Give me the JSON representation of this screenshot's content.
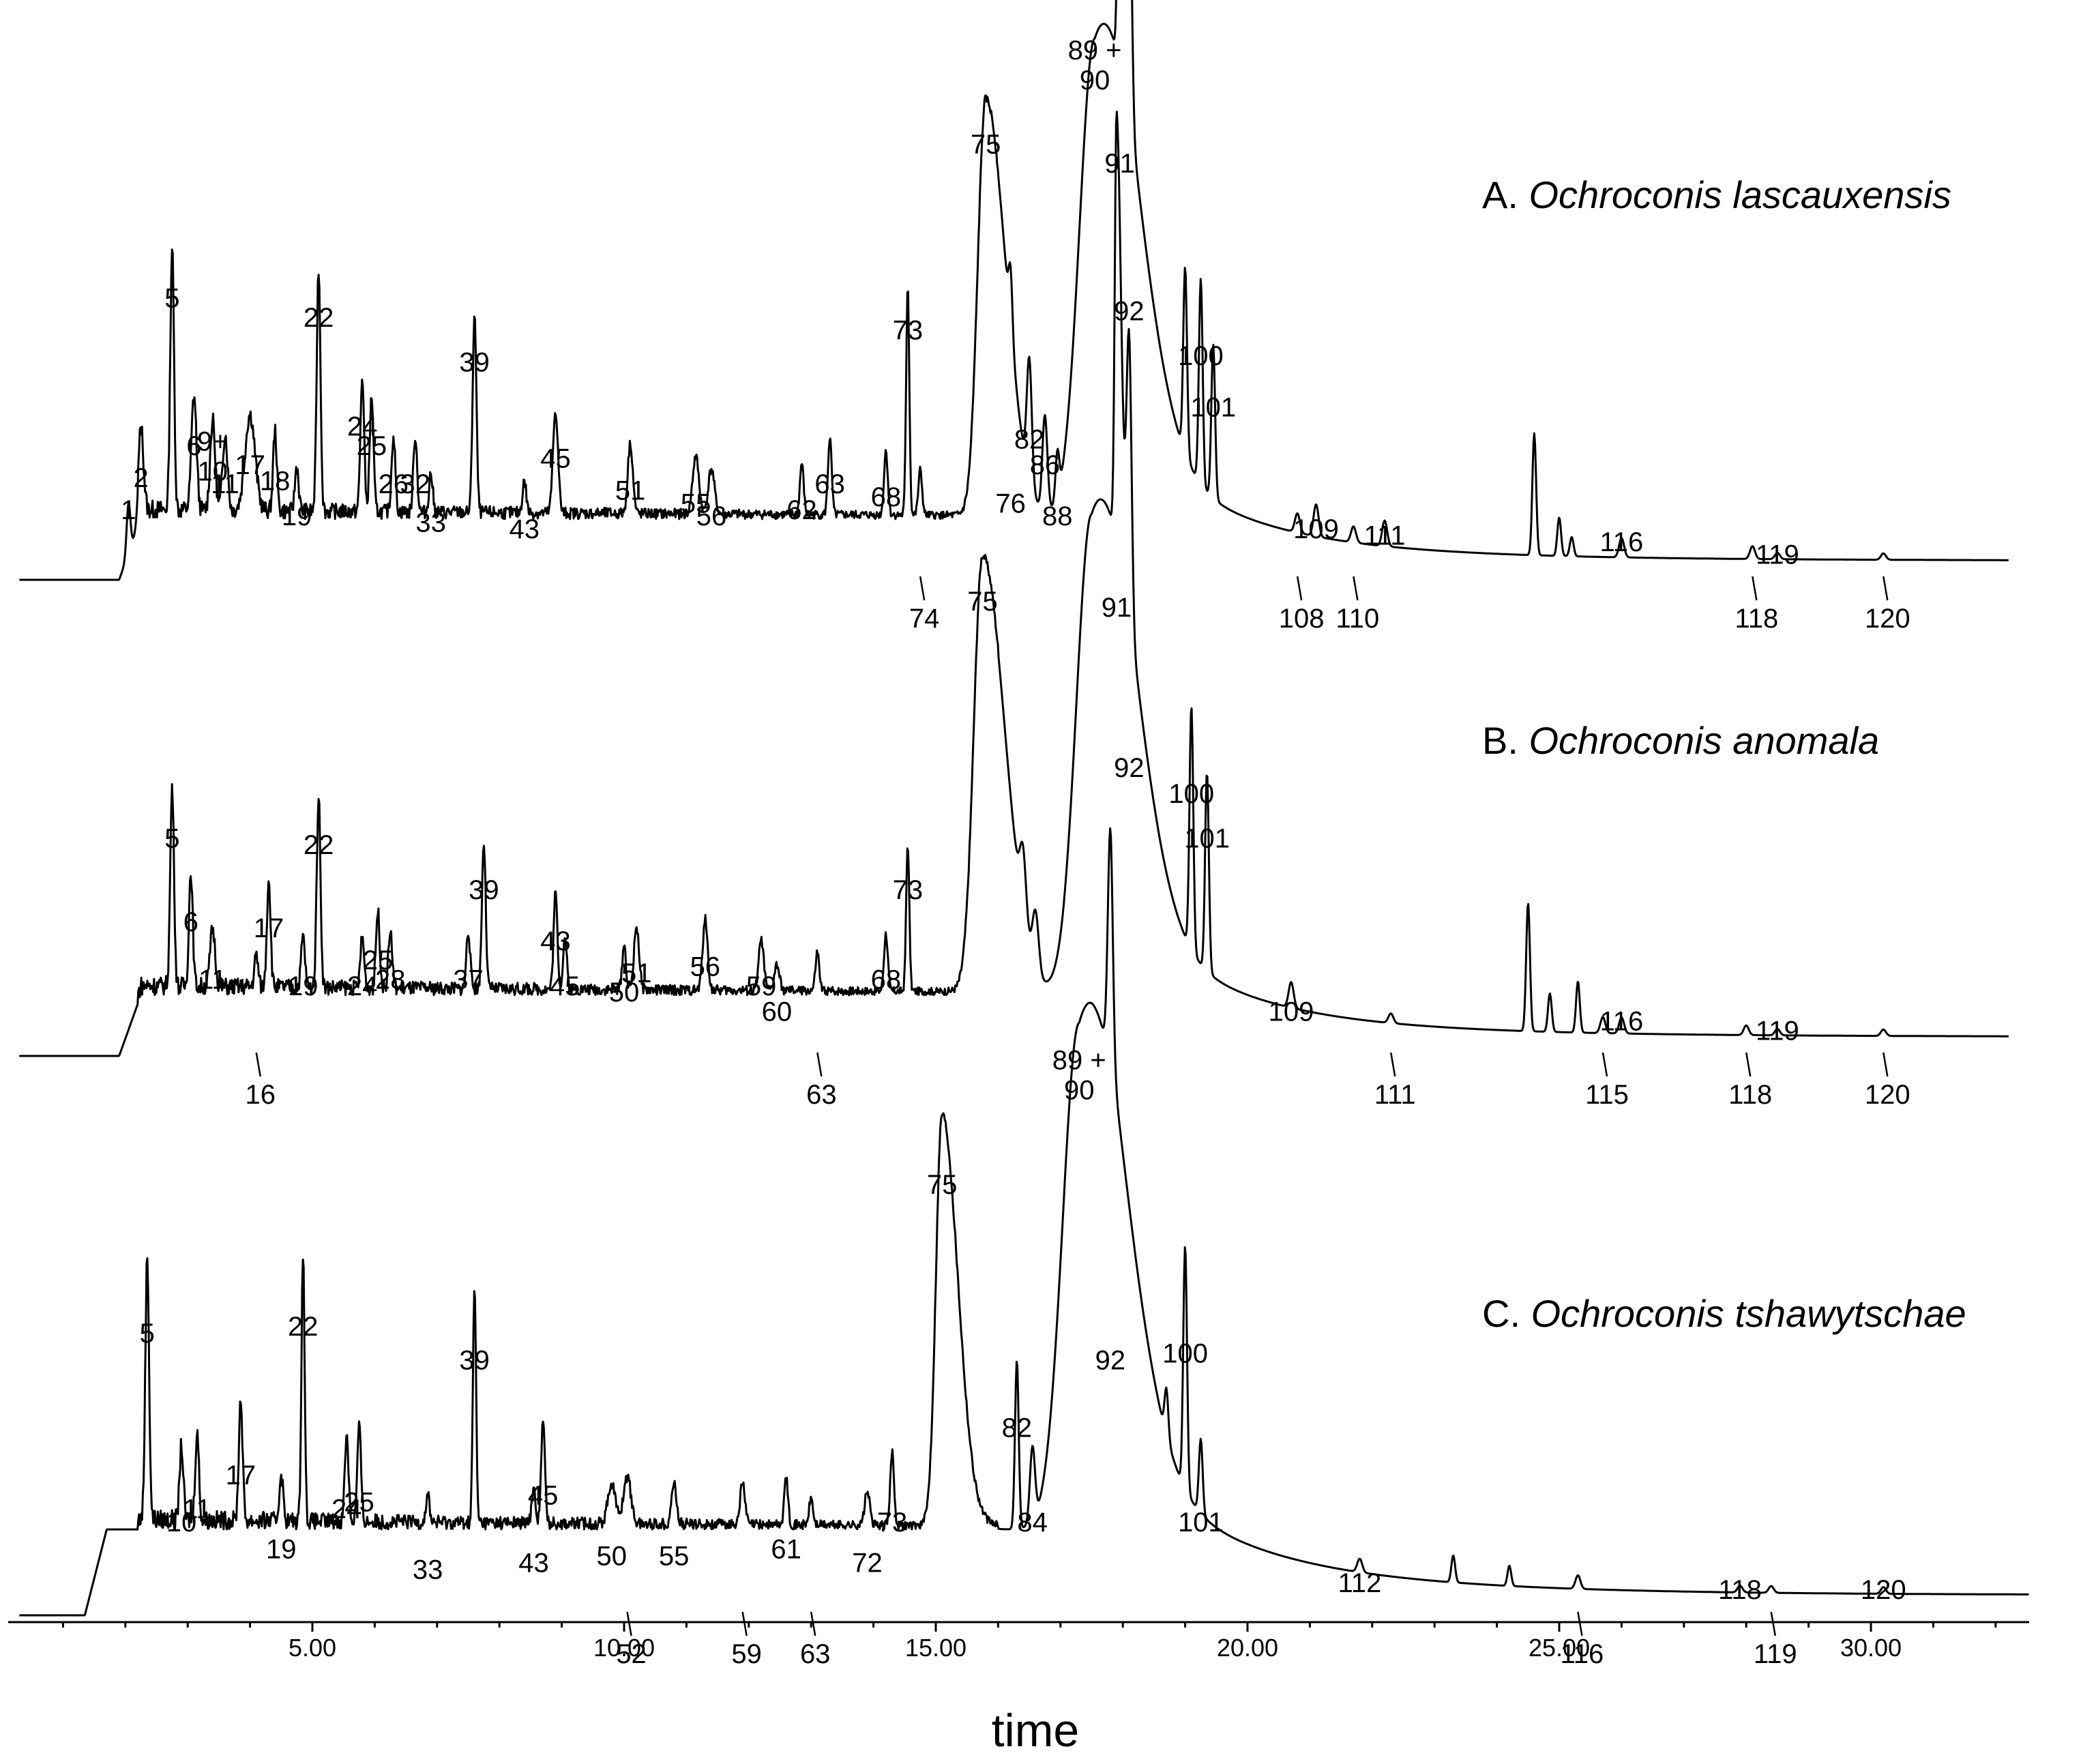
{
  "chart_data": {
    "type": "line",
    "x_unit": "min",
    "xlabel": "time",
    "xlim": [
      0.3,
      33.0
    ],
    "x_ticks": [
      "5.00",
      "10.00",
      "15.00",
      "20.00",
      "25.00",
      "30.00"
    ],
    "x_tick_values": [
      5,
      10,
      15,
      20,
      25,
      30
    ],
    "panels": [
      {
        "label": "A.",
        "species": "Ochroconis lascauxensis",
        "start_time": 1.9,
        "baseline": 4,
        "peaks": [
          {
            "t": 2.05,
            "h": 16,
            "label": "1",
            "w": 0.03
          },
          {
            "t": 2.25,
            "h": 26,
            "label": "2",
            "w": 0.04
          },
          {
            "t": 2.75,
            "h": 82,
            "label": "5",
            "w": 0.03
          },
          {
            "t": 3.1,
            "h": 36,
            "label": "6",
            "w": 0.04
          },
          {
            "t": 3.4,
            "h": 28,
            "label": "9+\n10",
            "w": 0.04
          },
          {
            "t": 3.6,
            "h": 24,
            "label": "11",
            "w": 0.04
          },
          {
            "t": 4.0,
            "h": 30,
            "label": "17",
            "w": 0.08
          },
          {
            "t": 4.4,
            "h": 25,
            "label": "18",
            "w": 0.03
          },
          {
            "t": 4.75,
            "h": 14,
            "label": "19",
            "w": 0.03
          },
          {
            "t": 5.1,
            "h": 76,
            "label": "22",
            "w": 0.03
          },
          {
            "t": 5.8,
            "h": 42,
            "label": "24",
            "w": 0.03
          },
          {
            "t": 5.95,
            "h": 36,
            "label": "25",
            "w": 0.03
          },
          {
            "t": 6.3,
            "h": 24,
            "label": "26",
            "w": 0.03
          },
          {
            "t": 6.65,
            "h": 24,
            "label": "32",
            "w": 0.03
          },
          {
            "t": 6.9,
            "h": 12,
            "label": "33",
            "w": 0.03
          },
          {
            "t": 7.6,
            "h": 62,
            "label": "39",
            "w": 0.03
          },
          {
            "t": 8.4,
            "h": 10,
            "label": "43",
            "w": 0.03
          },
          {
            "t": 8.9,
            "h": 32,
            "label": "45",
            "w": 0.04
          },
          {
            "t": 10.1,
            "h": 22,
            "label": "51",
            "w": 0.04
          },
          {
            "t": 11.15,
            "h": 18,
            "label": "55",
            "w": 0.05
          },
          {
            "t": 11.4,
            "h": 14,
            "label": "56",
            "w": 0.05
          },
          {
            "t": 12.85,
            "h": 16,
            "label": "62",
            "w": 0.03
          },
          {
            "t": 13.3,
            "h": 24,
            "label": "63",
            "w": 0.03
          },
          {
            "t": 14.2,
            "h": 20,
            "label": "68",
            "w": 0.03
          },
          {
            "t": 14.55,
            "h": 72,
            "label": "73",
            "w": 0.025
          },
          {
            "t": 14.75,
            "h": 14,
            "label": "74",
            "w": 0.03
          },
          {
            "t": 15.8,
            "h": 130,
            "label": "75",
            "w": 0.18
          },
          {
            "t": 16.2,
            "h": 18,
            "label": "76",
            "w": 0.03
          },
          {
            "t": 16.5,
            "h": 38,
            "label": "82",
            "w": 0.04
          },
          {
            "t": 16.75,
            "h": 30,
            "label": "86",
            "w": 0.04
          },
          {
            "t": 16.95,
            "h": 14,
            "label": "88",
            "w": 0.03
          },
          {
            "t": 17.55,
            "h": 150,
            "label": "89 +\n90",
            "w": 0.35
          },
          {
            "t": 17.95,
            "h": 124,
            "label": "91",
            "w": 0.04
          },
          {
            "t": 18.1,
            "h": 78,
            "label": "92",
            "w": 0.04
          },
          {
            "t": 19.0,
            "h": 58,
            "label": "",
            "w": 0.03
          },
          {
            "t": 19.25,
            "h": 64,
            "label": "100",
            "w": 0.03
          },
          {
            "t": 19.45,
            "h": 48,
            "label": "101",
            "w": 0.03
          },
          {
            "t": 20.8,
            "h": 6,
            "label": "108",
            "w": 0.04
          },
          {
            "t": 21.1,
            "h": 10,
            "label": "109",
            "w": 0.04
          },
          {
            "t": 21.7,
            "h": 5,
            "label": "110",
            "w": 0.04
          },
          {
            "t": 22.2,
            "h": 8,
            "label": "111",
            "w": 0.04
          },
          {
            "t": 24.6,
            "h": 38,
            "label": "",
            "w": 0.03
          },
          {
            "t": 25.0,
            "h": 12,
            "label": "",
            "w": 0.03
          },
          {
            "t": 25.2,
            "h": 6,
            "label": "",
            "w": 0.03
          },
          {
            "t": 26.0,
            "h": 6,
            "label": "116",
            "w": 0.04
          },
          {
            "t": 28.1,
            "h": 4,
            "label": "118",
            "w": 0.04
          },
          {
            "t": 28.5,
            "h": 2,
            "label": "119",
            "w": 0.04
          },
          {
            "t": 30.2,
            "h": 2,
            "label": "120",
            "w": 0.04
          }
        ]
      },
      {
        "label": "B.",
        "species": "Ochroconis anomala",
        "start_time": 1.9,
        "baseline": 4,
        "peaks": [
          {
            "t": 2.75,
            "h": 62,
            "label": "5",
            "w": 0.03
          },
          {
            "t": 3.05,
            "h": 36,
            "label": "6",
            "w": 0.03
          },
          {
            "t": 3.4,
            "h": 18,
            "label": "11",
            "w": 0.04
          },
          {
            "t": 4.1,
            "h": 10,
            "label": "16",
            "w": 0.03
          },
          {
            "t": 4.3,
            "h": 34,
            "label": "17",
            "w": 0.03
          },
          {
            "t": 4.85,
            "h": 16,
            "label": "19",
            "w": 0.03
          },
          {
            "t": 5.1,
            "h": 60,
            "label": "22",
            "w": 0.03
          },
          {
            "t": 5.8,
            "h": 16,
            "label": "24",
            "w": 0.03
          },
          {
            "t": 6.05,
            "h": 24,
            "label": "25",
            "w": 0.03
          },
          {
            "t": 6.25,
            "h": 18,
            "label": "28",
            "w": 0.03
          },
          {
            "t": 7.5,
            "h": 18,
            "label": "37",
            "w": 0.03
          },
          {
            "t": 7.75,
            "h": 46,
            "label": "39",
            "w": 0.03
          },
          {
            "t": 8.9,
            "h": 30,
            "label": "43",
            "w": 0.03
          },
          {
            "t": 9.05,
            "h": 16,
            "label": "45",
            "w": 0.03
          },
          {
            "t": 10.0,
            "h": 14,
            "label": "50",
            "w": 0.03
          },
          {
            "t": 10.2,
            "h": 20,
            "label": "51",
            "w": 0.04
          },
          {
            "t": 11.3,
            "h": 22,
            "label": "56",
            "w": 0.04
          },
          {
            "t": 12.2,
            "h": 16,
            "label": "59",
            "w": 0.04
          },
          {
            "t": 12.45,
            "h": 8,
            "label": "60",
            "w": 0.04
          },
          {
            "t": 13.1,
            "h": 12,
            "label": "63",
            "w": 0.03
          },
          {
            "t": 14.2,
            "h": 18,
            "label": "68",
            "w": 0.03
          },
          {
            "t": 14.55,
            "h": 46,
            "label": "73",
            "w": 0.025
          },
          {
            "t": 15.75,
            "h": 136,
            "label": "75",
            "w": 0.2
          },
          {
            "t": 16.4,
            "h": 20,
            "label": "",
            "w": 0.05
          },
          {
            "t": 16.6,
            "h": 18,
            "label": "",
            "w": 0.05
          },
          {
            "t": 17.5,
            "h": 150,
            "label": "",
            "w": 0.35
          },
          {
            "t": 17.9,
            "h": 134,
            "label": "91",
            "w": 0.04
          },
          {
            "t": 18.1,
            "h": 84,
            "label": "92",
            "w": 0.04
          },
          {
            "t": 19.1,
            "h": 76,
            "label": "100",
            "w": 0.03
          },
          {
            "t": 19.35,
            "h": 62,
            "label": "101",
            "w": 0.03
          },
          {
            "t": 20.7,
            "h": 8,
            "label": "109",
            "w": 0.04
          },
          {
            "t": 22.3,
            "h": 3,
            "label": "111",
            "w": 0.04
          },
          {
            "t": 24.5,
            "h": 40,
            "label": "",
            "w": 0.03
          },
          {
            "t": 24.85,
            "h": 12,
            "label": "",
            "w": 0.03
          },
          {
            "t": 25.3,
            "h": 16,
            "label": "",
            "w": 0.03
          },
          {
            "t": 25.7,
            "h": 5,
            "label": "115",
            "w": 0.04
          },
          {
            "t": 26.0,
            "h": 5,
            "label": "116",
            "w": 0.04
          },
          {
            "t": 28.0,
            "h": 3,
            "label": "118",
            "w": 0.04
          },
          {
            "t": 28.5,
            "h": 2,
            "label": "119",
            "w": 0.04
          },
          {
            "t": 30.2,
            "h": 2,
            "label": "120",
            "w": 0.04
          }
        ]
      },
      {
        "label": "C.",
        "species": "Ochroconis tshawytschae",
        "start_time": 1.35,
        "baseline": 6,
        "peaks": [
          {
            "t": 2.35,
            "h": 78,
            "label": "5",
            "w": 0.03
          },
          {
            "t": 2.9,
            "h": 22,
            "label": "10",
            "w": 0.03
          },
          {
            "t": 3.15,
            "h": 26,
            "label": "11",
            "w": 0.03
          },
          {
            "t": 3.85,
            "h": 36,
            "label": "17",
            "w": 0.03
          },
          {
            "t": 4.5,
            "h": 14,
            "label": "19",
            "w": 0.03
          },
          {
            "t": 4.85,
            "h": 80,
            "label": "22",
            "w": 0.025
          },
          {
            "t": 5.55,
            "h": 26,
            "label": "24",
            "w": 0.03
          },
          {
            "t": 5.75,
            "h": 28,
            "label": "25",
            "w": 0.03
          },
          {
            "t": 6.85,
            "h": 8,
            "label": "33",
            "w": 0.03
          },
          {
            "t": 7.6,
            "h": 70,
            "label": "39",
            "w": 0.025
          },
          {
            "t": 8.55,
            "h": 10,
            "label": "43",
            "w": 0.03
          },
          {
            "t": 8.7,
            "h": 30,
            "label": "45",
            "w": 0.03
          },
          {
            "t": 9.8,
            "h": 12,
            "label": "50",
            "w": 0.06
          },
          {
            "t": 10.05,
            "h": 14,
            "label": "52",
            "w": 0.06
          },
          {
            "t": 10.8,
            "h": 12,
            "label": "55",
            "w": 0.04
          },
          {
            "t": 11.9,
            "h": 12,
            "label": "59",
            "w": 0.04
          },
          {
            "t": 12.6,
            "h": 14,
            "label": "61",
            "w": 0.03
          },
          {
            "t": 13.0,
            "h": 8,
            "label": "63",
            "w": 0.03
          },
          {
            "t": 13.9,
            "h": 10,
            "label": "72",
            "w": 0.04
          },
          {
            "t": 14.3,
            "h": 22,
            "label": "73",
            "w": 0.03
          },
          {
            "t": 15.1,
            "h": 122,
            "label": "75",
            "w": 0.14
          },
          {
            "t": 16.3,
            "h": 50,
            "label": "82",
            "w": 0.03
          },
          {
            "t": 16.55,
            "h": 22,
            "label": "84",
            "w": 0.04
          },
          {
            "t": 17.3,
            "h": 150,
            "label": "89 +\n90",
            "w": 0.38
          },
          {
            "t": 17.8,
            "h": 70,
            "label": "92",
            "w": 0.04
          },
          {
            "t": 18.7,
            "h": 14,
            "label": "",
            "w": 0.03
          },
          {
            "t": 19.0,
            "h": 72,
            "label": "100",
            "w": 0.03
          },
          {
            "t": 19.25,
            "h": 22,
            "label": "101",
            "w": 0.03
          },
          {
            "t": 21.8,
            "h": 4,
            "label": "112",
            "w": 0.04
          },
          {
            "t": 23.3,
            "h": 8,
            "label": "",
            "w": 0.03
          },
          {
            "t": 24.2,
            "h": 6,
            "label": "",
            "w": 0.03
          },
          {
            "t": 25.3,
            "h": 4,
            "label": "116",
            "w": 0.04
          },
          {
            "t": 27.9,
            "h": 2,
            "label": "118",
            "w": 0.04
          },
          {
            "t": 28.4,
            "h": 2,
            "label": "119",
            "w": 0.04
          },
          {
            "t": 30.2,
            "h": 2,
            "label": "120",
            "w": 0.04
          }
        ]
      }
    ]
  }
}
